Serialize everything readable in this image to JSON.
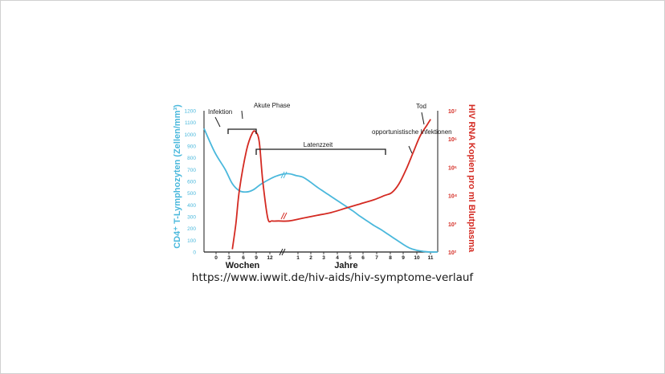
{
  "source_caption": "https://www.iwwit.de/hiv-aids/hiv-symptome-verlauf",
  "colors": {
    "cd4": "#4ab8dc",
    "rna": "#d42a22",
    "axis": "#1a1a1a",
    "annotation": "#1a1a1a"
  },
  "chart_data": {
    "type": "line",
    "title": "",
    "xlabel_weeks": "Wochen",
    "xlabel_years": "Jahre",
    "ylabel_left": "CD4⁺ T-Lymphozyten (Zellen/mm³)",
    "ylabel_right": "HIV RNA Kopien pro ml Blutplasma",
    "x_ticks": [
      "0",
      "3",
      "6",
      "9",
      "12",
      "1",
      "2",
      "3",
      "4",
      "5",
      "6",
      "7",
      "8",
      "9",
      "10",
      "11"
    ],
    "y_left_ticks": [
      "0",
      "100",
      "200",
      "300",
      "400",
      "500",
      "600",
      "700",
      "800",
      "900",
      "1000",
      "1100",
      "1200"
    ],
    "y_left_range": [
      0,
      1200
    ],
    "y_right_ticks": [
      "10²",
      "10³",
      "10⁴",
      "10⁵",
      "10⁶",
      "10⁷"
    ],
    "y_right_range_log10": [
      2,
      7
    ],
    "series": [
      {
        "name": "CD4⁺ T-Lymphozyten",
        "axis": "left",
        "color": "#4ab8dc",
        "points": [
          [
            0,
            1050
          ],
          [
            1.5,
            850
          ],
          [
            3,
            700
          ],
          [
            4,
            580
          ],
          [
            5,
            520
          ],
          [
            6,
            510
          ],
          [
            7,
            530
          ],
          [
            8,
            575
          ],
          [
            9,
            610
          ],
          [
            10,
            640
          ],
          [
            11,
            660
          ],
          [
            12,
            665
          ],
          [
            13,
            650
          ],
          [
            14,
            635
          ],
          [
            15,
            595
          ],
          [
            16,
            550
          ],
          [
            17,
            510
          ],
          [
            18,
            470
          ],
          [
            19,
            430
          ],
          [
            20,
            390
          ],
          [
            21,
            350
          ],
          [
            22,
            305
          ],
          [
            23,
            265
          ],
          [
            24,
            225
          ],
          [
            25,
            190
          ],
          [
            26,
            150
          ],
          [
            27,
            110
          ],
          [
            28,
            70
          ],
          [
            29,
            35
          ],
          [
            30,
            15
          ],
          [
            31,
            5
          ],
          [
            32,
            0
          ],
          [
            33,
            0
          ]
        ]
      },
      {
        "name": "HIV RNA",
        "axis": "right",
        "color": "#d42a22",
        "points": [
          [
            4,
            2.1
          ],
          [
            4.5,
            3.0
          ],
          [
            5,
            4.2
          ],
          [
            6,
            5.6
          ],
          [
            6.8,
            6.2
          ],
          [
            7.3,
            6.25
          ],
          [
            7.8,
            5.9
          ],
          [
            8.3,
            4.5
          ],
          [
            9,
            3.2
          ],
          [
            9.6,
            3.1
          ],
          [
            10.5,
            3.1
          ],
          [
            12,
            3.1
          ],
          [
            14,
            3.2
          ],
          [
            16,
            3.3
          ],
          [
            18,
            3.4
          ],
          [
            20,
            3.55
          ],
          [
            22,
            3.7
          ],
          [
            24,
            3.85
          ],
          [
            25.5,
            4.0
          ],
          [
            26.5,
            4.1
          ],
          [
            27.5,
            4.4
          ],
          [
            28.5,
            4.9
          ],
          [
            29.5,
            5.5
          ],
          [
            30.5,
            6.1
          ],
          [
            31.5,
            6.5
          ],
          [
            32,
            6.7
          ]
        ]
      }
    ],
    "annotations": {
      "infektion": "Infektion",
      "akute_phase": "Akute Phase",
      "latenzzeit": "Latenzzeit",
      "opportunistische": "opportunistische Infektionen",
      "tod": "Tod"
    },
    "grid": false,
    "legend": "none"
  }
}
